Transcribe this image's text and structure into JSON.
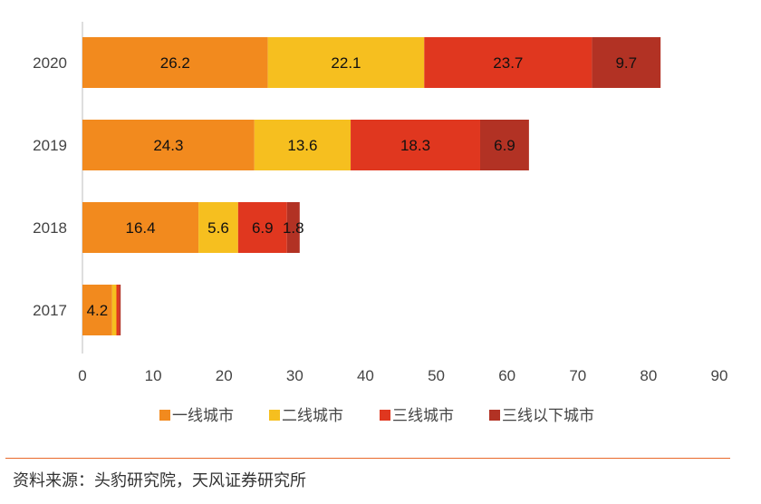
{
  "chart_data": {
    "type": "bar",
    "orientation": "horizontal",
    "stacked": true,
    "categories": [
      "2020",
      "2019",
      "2018",
      "2017"
    ],
    "series": [
      {
        "name": "一线城市",
        "color": "#f28a1e",
        "values": [
          26.2,
          24.3,
          16.4,
          4.2
        ]
      },
      {
        "name": "二线城市",
        "color": "#f6bf1f",
        "values": [
          22.1,
          13.6,
          5.6,
          0.6
        ]
      },
      {
        "name": "三线城市",
        "color": "#e0371f",
        "values": [
          23.7,
          18.3,
          6.9,
          0.4
        ]
      },
      {
        "name": "三线以下城市",
        "color": "#b23224",
        "values": [
          9.7,
          6.9,
          1.8,
          0.2
        ]
      }
    ],
    "data_labels": [
      [
        "26.2",
        "22.1",
        "23.7",
        "9.7"
      ],
      [
        "24.3",
        "13.6",
        "18.3",
        "6.9"
      ],
      [
        "16.4",
        "5.6",
        "6.9",
        "1.8"
      ],
      [
        "4.2",
        "",
        "",
        ""
      ]
    ],
    "xlim": [
      0,
      90
    ],
    "xticks": [
      0,
      10,
      20,
      30,
      40,
      50,
      60,
      70,
      80,
      90
    ],
    "grid": false,
    "legend_position": "bottom"
  },
  "source": "资料来源：头豹研究院，天风证券研究所"
}
